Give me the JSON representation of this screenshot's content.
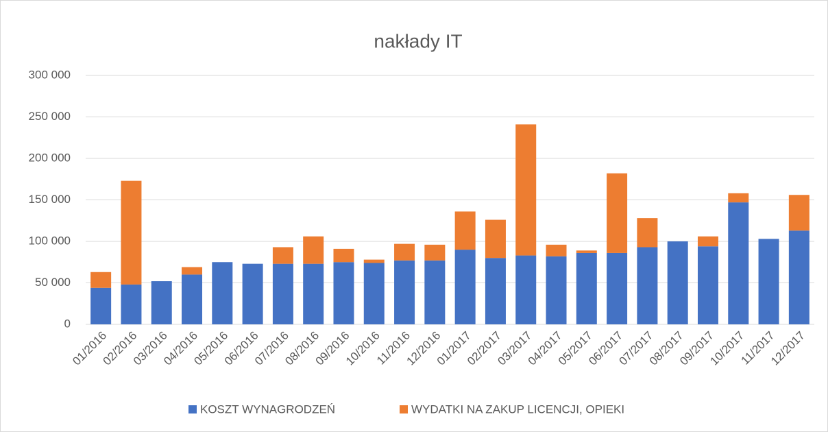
{
  "chart_data": {
    "type": "stacked_bar",
    "title": "nakłady IT",
    "categories": [
      "01/2016",
      "02/2016",
      "03/2016",
      "04/2016",
      "05/2016",
      "06/2016",
      "07/2016",
      "08/2016",
      "09/2016",
      "10/2016",
      "11/2016",
      "12/2016",
      "01/2017",
      "02/2017",
      "03/2017",
      "04/2017",
      "05/2017",
      "06/2017",
      "07/2017",
      "08/2017",
      "09/2017",
      "10/2017",
      "11/2017",
      "12/2017"
    ],
    "series": [
      {
        "name": "KOSZT WYNAGRODZEŃ",
        "color": "#4472c4",
        "values": [
          44000,
          48000,
          52000,
          60000,
          75000,
          73000,
          73000,
          73000,
          75000,
          74000,
          77000,
          77000,
          90000,
          80000,
          83000,
          82000,
          86000,
          86000,
          93000,
          100000,
          94000,
          147000,
          103000,
          113000
        ]
      },
      {
        "name": "WYDATKI NA ZAKUP LICENCJI, OPIEKI",
        "color": "#ed7d31",
        "values": [
          19000,
          125000,
          0,
          9000,
          0,
          0,
          20000,
          33000,
          16000,
          4000,
          20000,
          19000,
          46000,
          46000,
          158000,
          14000,
          3000,
          96000,
          35000,
          0,
          12000,
          11000,
          0,
          43000
        ]
      }
    ],
    "ylim": [
      0,
      300000
    ],
    "yticks": [
      0,
      {
        "value": 50000,
        "label": "50 000"
      },
      {
        "value": 100000,
        "label": "100 000"
      },
      {
        "value": 150000,
        "label": "150 000"
      },
      {
        "value": 200000,
        "label": "200 000"
      },
      {
        "value": 250000,
        "label": "250 000"
      },
      {
        "value": 300000,
        "label": "300 000"
      }
    ],
    "grid": true,
    "legend": "bottom"
  }
}
